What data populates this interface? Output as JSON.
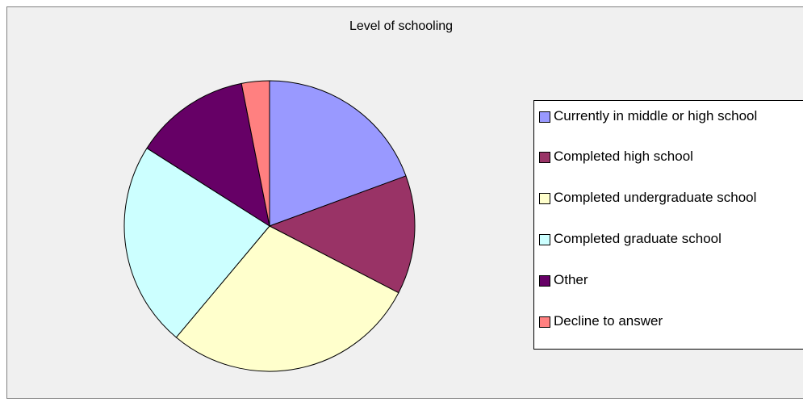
{
  "chart_data": {
    "type": "pie",
    "title": "Level of schooling",
    "categories": [
      "Currently in middle or high school",
      "Completed high school",
      "Completed undergraduate school",
      "Completed graduate school",
      "Other",
      "Decline to answer"
    ],
    "values": [
      19.4,
      13.2,
      28.5,
      22.9,
      12.9,
      3.1
    ],
    "colors": [
      "#9999ff",
      "#993366",
      "#ffffcc",
      "#ccffff",
      "#660066",
      "#ff8080"
    ],
    "legend": "right"
  }
}
